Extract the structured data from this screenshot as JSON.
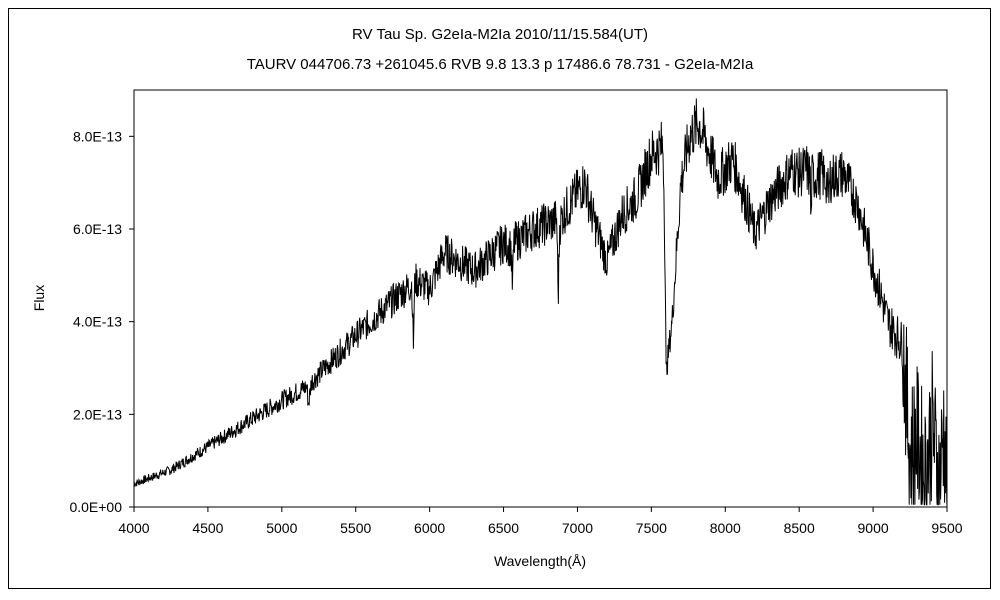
{
  "chart_data": {
    "type": "line",
    "title": "RV Tau    Sp. G2eIa-M2Ia    2010/11/15.584(UT)",
    "subtitle": "TAURV 044706.73 +261045.6 RVB 9.8 13.3 p 17486.6 78.731 - G2eIa-M2Ia",
    "xlabel": "Wavelength(Å)",
    "ylabel": "Flux",
    "xlim": [
      4000,
      9500
    ],
    "ylim": [
      0,
      9e-13
    ],
    "xticks": [
      4000,
      4500,
      5000,
      5500,
      6000,
      6500,
      7000,
      7500,
      8000,
      8500,
      9000,
      9500
    ],
    "xtick_labels": [
      "4000",
      "4500",
      "5000",
      "5500",
      "6000",
      "6500",
      "7000",
      "7500",
      "8000",
      "8500",
      "9000",
      "9500"
    ],
    "yticks": [
      0,
      2e-13,
      4e-13,
      6e-13,
      8e-13
    ],
    "ytick_labels": [
      "0.0E+00",
      "2.0E-13",
      "4.0E-13",
      "6.0E-13",
      "8.0E-13"
    ],
    "grid": false,
    "series": [
      {
        "name": "RV Tau spectrum",
        "unit_scale": 1e-13,
        "x": [
          4000,
          4250,
          4500,
          4750,
          5000,
          5170,
          5180,
          5200,
          5500,
          5800,
          5880,
          5890,
          5900,
          6000,
          6100,
          6300,
          6500,
          6550,
          6560,
          6570,
          6700,
          6860,
          6870,
          6880,
          6900,
          7000,
          7050,
          7100,
          7200,
          7300,
          7400,
          7500,
          7580,
          7590,
          7600,
          7640,
          7700,
          7760,
          7820,
          7900,
          7950,
          8050,
          8150,
          8200,
          8300,
          8450,
          8500,
          8550,
          8575,
          8580,
          8585,
          8650,
          8690,
          8700,
          8710,
          8800,
          8900,
          9000,
          9100,
          9200,
          9250,
          9300,
          9350,
          9400,
          9450,
          9480,
          9500
        ],
        "y": [
          0.5,
          0.8,
          1.3,
          1.8,
          2.3,
          2.6,
          2.2,
          2.7,
          3.7,
          4.6,
          4.8,
          3.5,
          4.9,
          4.7,
          5.5,
          5.1,
          5.7,
          5.6,
          4.7,
          5.7,
          6.0,
          6.2,
          4.5,
          6.1,
          6.3,
          6.8,
          7.0,
          6.3,
          5.3,
          6.3,
          6.7,
          7.6,
          7.8,
          6.0,
          2.9,
          4.0,
          7.0,
          8.0,
          8.3,
          7.6,
          7.1,
          7.5,
          6.5,
          5.9,
          6.6,
          7.3,
          7.2,
          7.3,
          7.1,
          5.9,
          7.1,
          7.2,
          7.0,
          6.6,
          7.1,
          7.2,
          6.5,
          5.2,
          4.0,
          3.5,
          1.2,
          1.5,
          0.7,
          1.8,
          0.5,
          1.8,
          0.2
        ]
      }
    ]
  }
}
